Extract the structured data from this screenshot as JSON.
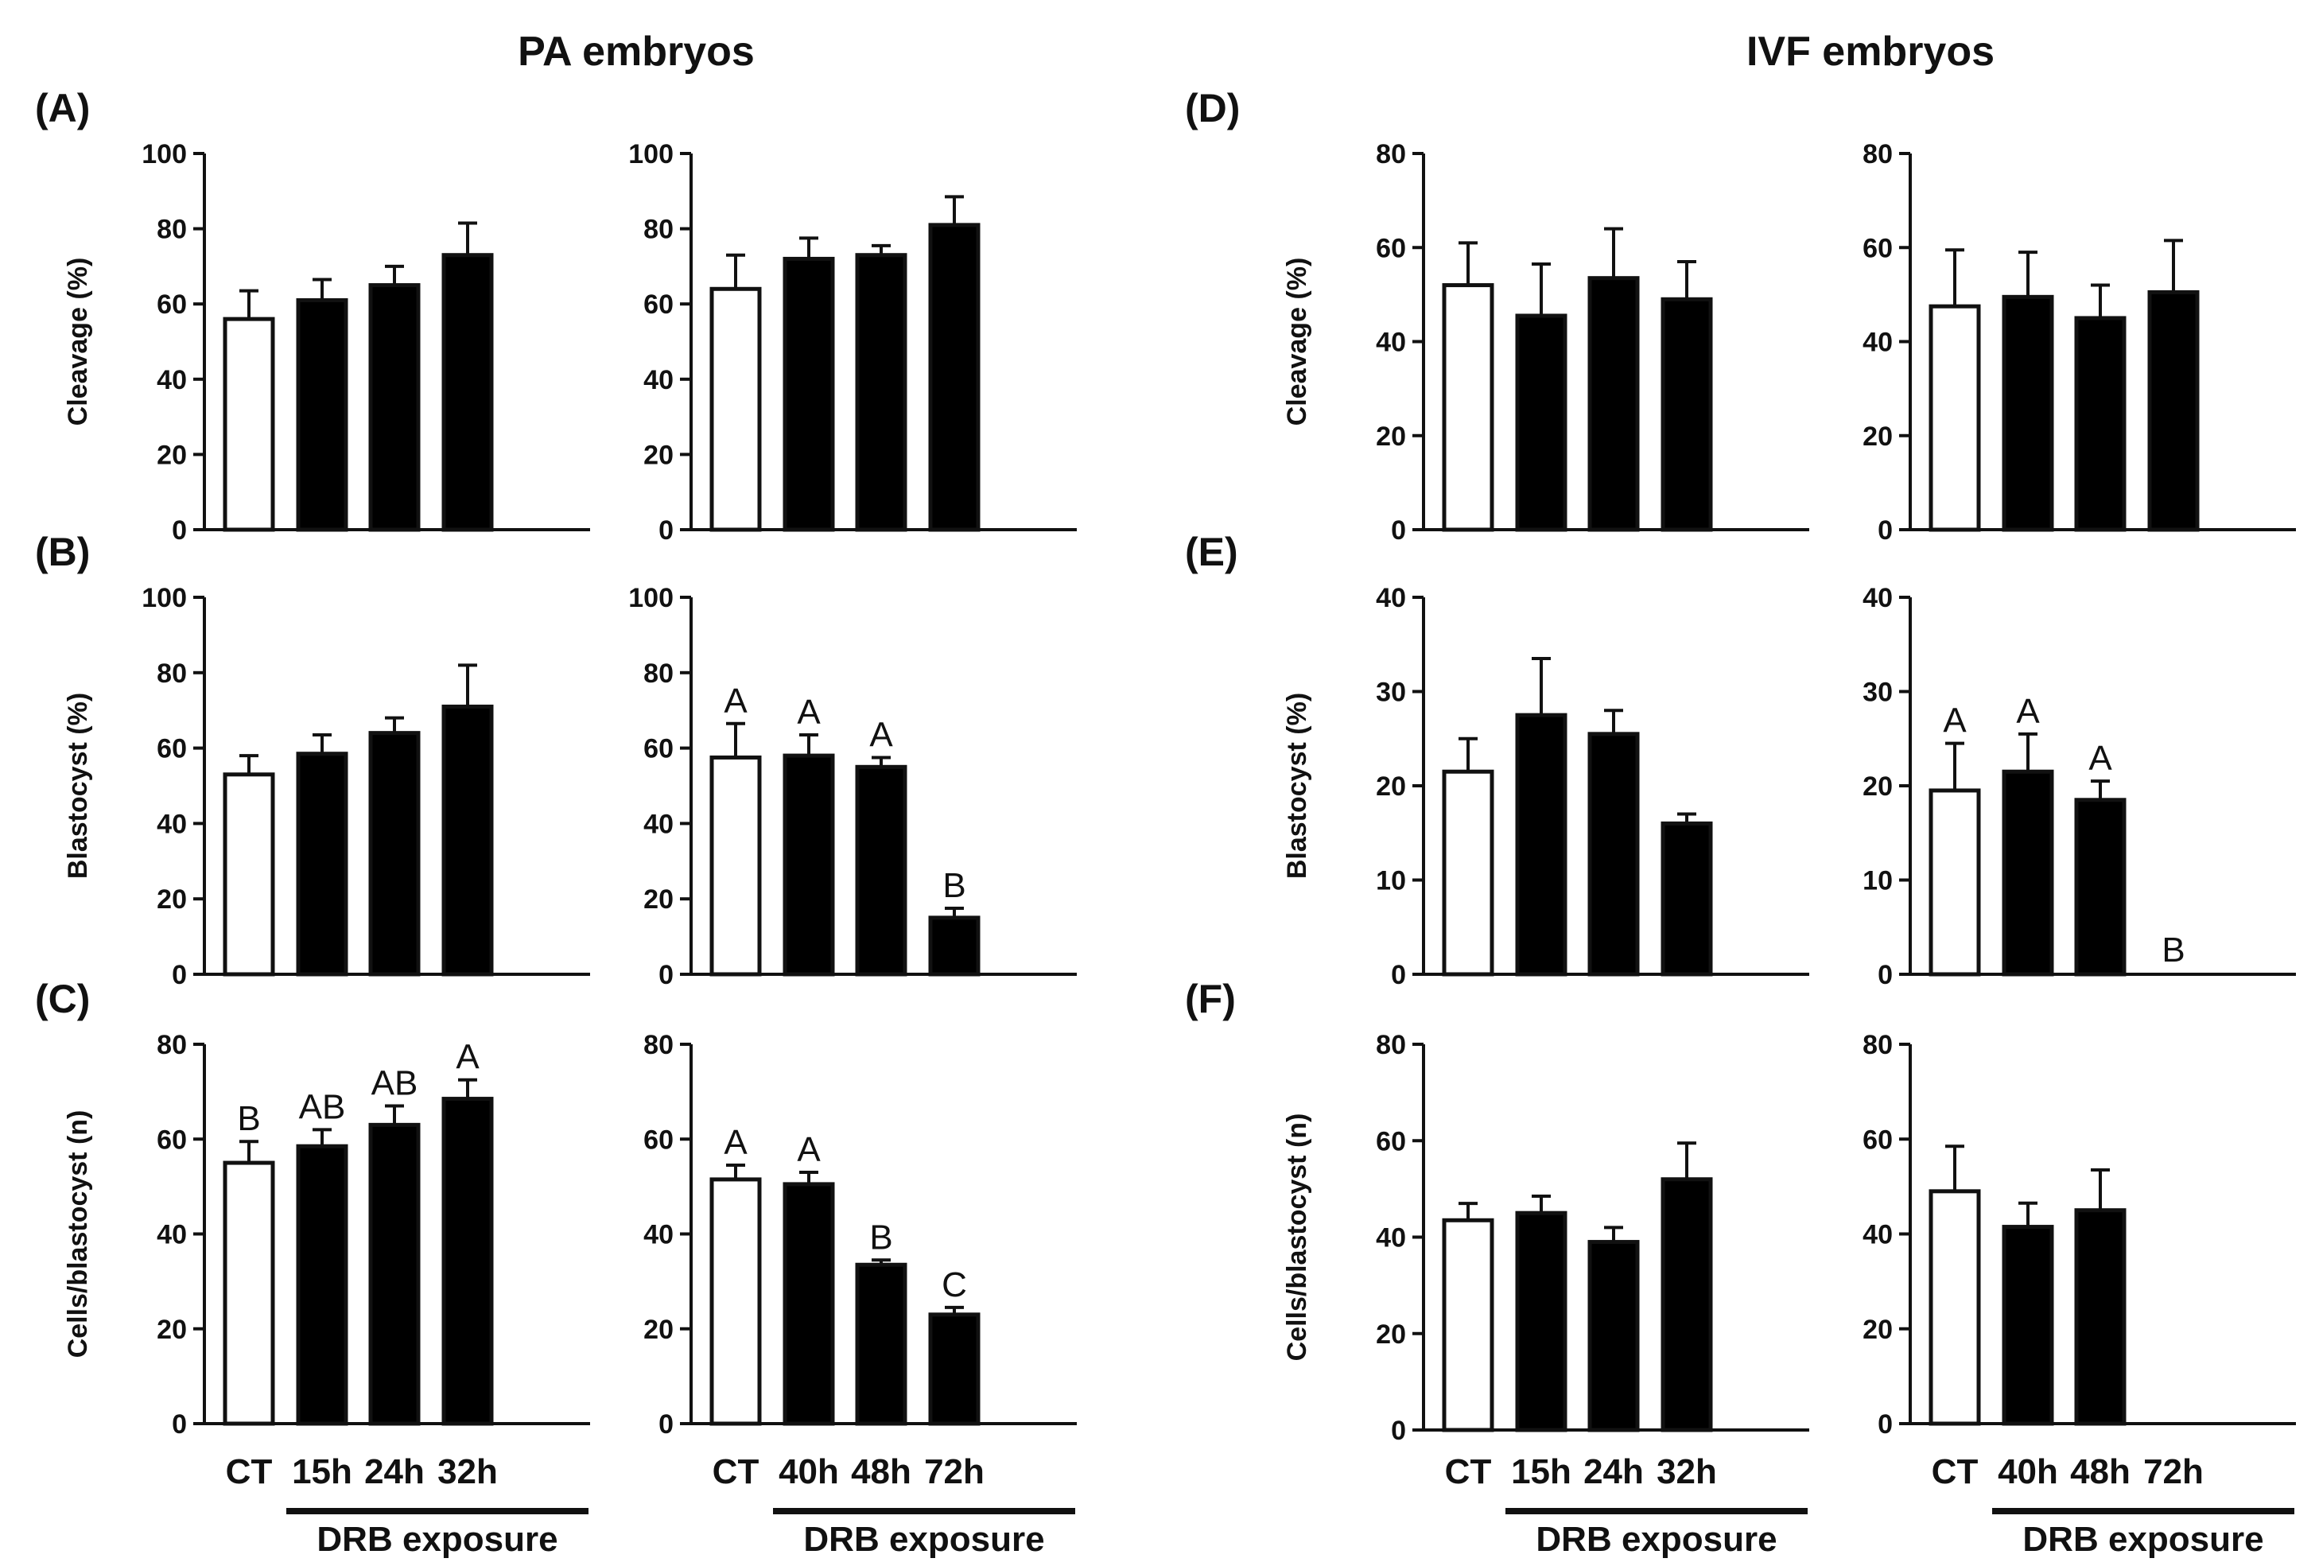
{
  "figure": {
    "titles": [
      "PA embryos",
      "IVF embryos"
    ],
    "group_label": "DRB exposure",
    "colors": {
      "control_fill": "#ffffff",
      "treatment_fill": "#000000",
      "ink": "#111111"
    }
  },
  "chart_data": [
    {
      "id": "A1",
      "panel_label": "(A)",
      "type": "bar",
      "ylabel": "Cleavage (%)",
      "ylim": [
        0,
        100
      ],
      "yticks": [
        0,
        20,
        40,
        60,
        80,
        100
      ],
      "categories": [
        "CT",
        "15h",
        "24h",
        "32h"
      ],
      "values": [
        56,
        61,
        65,
        73
      ],
      "errors": [
        7.5,
        5.5,
        5,
        8.5
      ],
      "sig": [
        "",
        "",
        "",
        ""
      ],
      "group_label": "DRB exposure"
    },
    {
      "id": "A2",
      "panel_label": "",
      "type": "bar",
      "ylabel": "",
      "ylim": [
        0,
        100
      ],
      "yticks": [
        0,
        20,
        40,
        60,
        80,
        100
      ],
      "categories": [
        "CT",
        "40h",
        "48h",
        "72h"
      ],
      "values": [
        64,
        72,
        73,
        81
      ],
      "errors": [
        9,
        5.5,
        2.5,
        7.5
      ],
      "sig": [
        "",
        "",
        "",
        ""
      ],
      "group_label": "DRB exposure"
    },
    {
      "id": "D1",
      "panel_label": "(D)",
      "type": "bar",
      "ylabel": "Cleavage (%)",
      "ylim": [
        0,
        80
      ],
      "yticks": [
        0,
        20,
        40,
        60,
        80
      ],
      "categories": [
        "CT",
        "15h",
        "24h",
        "32h"
      ],
      "values": [
        52,
        45.5,
        53.5,
        49
      ],
      "errors": [
        9,
        11,
        10.5,
        8
      ],
      "sig": [
        "",
        "",
        "",
        ""
      ],
      "group_label": "DRB exposure"
    },
    {
      "id": "D2",
      "panel_label": "",
      "type": "bar",
      "ylabel": "",
      "ylim": [
        0,
        80
      ],
      "yticks": [
        0,
        20,
        40,
        60,
        80
      ],
      "categories": [
        "CT",
        "40h",
        "48h",
        "72h"
      ],
      "values": [
        47.5,
        49.5,
        45,
        50.5
      ],
      "errors": [
        12,
        9.5,
        7,
        11
      ],
      "sig": [
        "",
        "",
        "",
        ""
      ],
      "group_label": "DRB exposure"
    },
    {
      "id": "B1",
      "panel_label": "(B)",
      "type": "bar",
      "ylabel": "Blastocyst (%)",
      "ylim": [
        0,
        100
      ],
      "yticks": [
        0,
        20,
        40,
        60,
        80,
        100
      ],
      "categories": [
        "CT",
        "15h",
        "24h",
        "32h"
      ],
      "values": [
        53,
        58.5,
        64,
        71
      ],
      "errors": [
        5,
        5,
        4,
        11
      ],
      "sig": [
        "",
        "",
        "",
        ""
      ],
      "group_label": "DRB exposure"
    },
    {
      "id": "B2",
      "panel_label": "",
      "type": "bar",
      "ylabel": "",
      "ylim": [
        0,
        100
      ],
      "yticks": [
        0,
        20,
        40,
        60,
        80,
        100
      ],
      "categories": [
        "CT",
        "40h",
        "48h",
        "72h"
      ],
      "values": [
        57.5,
        58,
        55,
        15
      ],
      "errors": [
        9,
        5.5,
        2.5,
        2.5
      ],
      "sig": [
        "A",
        "A",
        "A",
        "B"
      ],
      "group_label": "DRB exposure"
    },
    {
      "id": "E1",
      "panel_label": "(E)",
      "type": "bar",
      "ylabel": "Blastocyst (%)",
      "ylim": [
        0,
        40
      ],
      "yticks": [
        0,
        10,
        20,
        30,
        40
      ],
      "categories": [
        "CT",
        "15h",
        "24h",
        "32h"
      ],
      "values": [
        21.5,
        27.5,
        25.5,
        16
      ],
      "errors": [
        3.5,
        6,
        2.5,
        1
      ],
      "sig": [
        "",
        "",
        "",
        ""
      ],
      "group_label": "DRB exposure"
    },
    {
      "id": "E2",
      "panel_label": "",
      "type": "bar",
      "ylabel": "",
      "ylim": [
        0,
        40
      ],
      "yticks": [
        0,
        10,
        20,
        30,
        40
      ],
      "categories": [
        "CT",
        "40h",
        "48h",
        "72h"
      ],
      "values": [
        19.5,
        21.5,
        18.5,
        0
      ],
      "errors": [
        5,
        4,
        2,
        0
      ],
      "sig": [
        "A",
        "A",
        "A",
        "B"
      ],
      "group_label": "DRB exposure"
    },
    {
      "id": "C1",
      "panel_label": "(C)",
      "type": "bar",
      "ylabel": "Cells/blastocyst (n)",
      "ylim": [
        0,
        80
      ],
      "yticks": [
        0,
        20,
        40,
        60,
        80
      ],
      "categories": [
        "CT",
        "15h",
        "24h",
        "32h"
      ],
      "values": [
        55,
        58.5,
        63,
        68.5
      ],
      "errors": [
        4.5,
        3.5,
        4,
        4
      ],
      "sig": [
        "B",
        "AB",
        "AB",
        "A"
      ],
      "group_label": "DRB exposure"
    },
    {
      "id": "C2",
      "panel_label": "",
      "type": "bar",
      "ylabel": "",
      "ylim": [
        0,
        80
      ],
      "yticks": [
        0,
        20,
        40,
        60,
        80
      ],
      "categories": [
        "CT",
        "40h",
        "48h",
        "72h"
      ],
      "values": [
        51.5,
        50.5,
        33.5,
        23
      ],
      "errors": [
        3,
        2.5,
        1,
        1.5
      ],
      "sig": [
        "A",
        "A",
        "B",
        "C"
      ],
      "group_label": "DRB exposure"
    },
    {
      "id": "F1",
      "panel_label": "(F)",
      "type": "bar",
      "ylabel": "Cells/blastocyst (n)",
      "ylim": [
        0,
        80
      ],
      "yticks": [
        0,
        20,
        40,
        60,
        80
      ],
      "categories": [
        "CT",
        "15h",
        "24h",
        "32h"
      ],
      "values": [
        43.5,
        45,
        39,
        52
      ],
      "errors": [
        3.5,
        3.5,
        3,
        7.5
      ],
      "sig": [
        "",
        "",
        "",
        ""
      ],
      "group_label": "DRB exposure"
    },
    {
      "id": "F2",
      "panel_label": "",
      "type": "bar",
      "ylabel": "",
      "ylim": [
        0,
        80
      ],
      "yticks": [
        0,
        20,
        40,
        60,
        80
      ],
      "categories": [
        "CT",
        "40h",
        "48h",
        "72h"
      ],
      "values": [
        49,
        41.5,
        45,
        0
      ],
      "errors": [
        9.5,
        5,
        8.5,
        0
      ],
      "sig": [
        "",
        "",
        "",
        ""
      ],
      "group_label": "DRB exposure"
    }
  ]
}
